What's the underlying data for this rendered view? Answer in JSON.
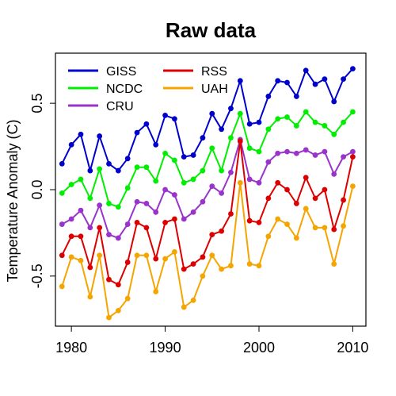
{
  "chart_data": {
    "type": "line",
    "title": "Raw data",
    "xlabel": "",
    "ylabel": "Temperature Anomaly (C)",
    "xlim": [
      1978.3,
      2011.4
    ],
    "ylim": [
      -0.79,
      0.79
    ],
    "xticks": [
      1980,
      1990,
      2000,
      2010
    ],
    "yticks": [
      -0.5,
      0.0,
      0.5
    ],
    "ytick_labels": [
      "-0.5",
      "0.0",
      "0.5"
    ],
    "grid": false,
    "legend_position": "top-left",
    "x": [
      1979,
      1980,
      1981,
      1982,
      1983,
      1984,
      1985,
      1986,
      1987,
      1988,
      1989,
      1990,
      1991,
      1992,
      1993,
      1994,
      1995,
      1996,
      1997,
      1998,
      1999,
      2000,
      2001,
      2002,
      2003,
      2004,
      2005,
      2006,
      2007,
      2008,
      2009,
      2010
    ],
    "series": [
      {
        "name": "GISS",
        "color": "#0000cc",
        "values": [
          0.15,
          0.26,
          0.32,
          0.11,
          0.31,
          0.15,
          0.11,
          0.18,
          0.33,
          0.38,
          0.26,
          0.43,
          0.41,
          0.19,
          0.2,
          0.3,
          0.44,
          0.35,
          0.47,
          0.63,
          0.38,
          0.39,
          0.54,
          0.63,
          0.62,
          0.54,
          0.69,
          0.61,
          0.64,
          0.51,
          0.64,
          0.7
        ]
      },
      {
        "name": "NCDC",
        "color": "#00ee00",
        "values": [
          -0.02,
          0.03,
          0.06,
          -0.05,
          0.12,
          -0.08,
          -0.1,
          0.01,
          0.13,
          0.13,
          0.05,
          0.21,
          0.17,
          0.04,
          0.06,
          0.11,
          0.24,
          0.11,
          0.3,
          0.44,
          0.24,
          0.22,
          0.35,
          0.41,
          0.42,
          0.37,
          0.45,
          0.39,
          0.37,
          0.32,
          0.39,
          0.45
        ]
      },
      {
        "name": "CRU",
        "color": "#9933cc",
        "values": [
          -0.2,
          -0.17,
          -0.12,
          -0.22,
          -0.09,
          -0.26,
          -0.28,
          -0.2,
          -0.07,
          -0.08,
          -0.13,
          0.0,
          -0.03,
          -0.17,
          -0.13,
          -0.07,
          0.02,
          -0.02,
          0.1,
          0.29,
          0.06,
          0.04,
          0.16,
          0.21,
          0.22,
          0.21,
          0.23,
          0.2,
          0.22,
          0.09,
          0.19,
          0.22
        ]
      },
      {
        "name": "RSS",
        "color": "#dd0000",
        "values": [
          -0.38,
          -0.27,
          -0.27,
          -0.45,
          -0.22,
          -0.52,
          -0.55,
          -0.42,
          -0.19,
          -0.22,
          -0.4,
          -0.19,
          -0.17,
          -0.46,
          -0.43,
          -0.39,
          -0.26,
          -0.24,
          -0.14,
          0.28,
          -0.18,
          -0.19,
          -0.05,
          0.04,
          0.0,
          -0.08,
          0.07,
          -0.05,
          0.0,
          -0.23,
          -0.06,
          0.19
        ]
      },
      {
        "name": "UAH",
        "color": "#f5a500",
        "values": [
          -0.56,
          -0.39,
          -0.41,
          -0.62,
          -0.38,
          -0.74,
          -0.7,
          -0.63,
          -0.38,
          -0.38,
          -0.59,
          -0.4,
          -0.36,
          -0.68,
          -0.64,
          -0.5,
          -0.38,
          -0.46,
          -0.44,
          0.04,
          -0.43,
          -0.44,
          -0.27,
          -0.17,
          -0.2,
          -0.28,
          -0.11,
          -0.22,
          -0.22,
          -0.43,
          -0.21,
          0.02
        ]
      }
    ]
  }
}
